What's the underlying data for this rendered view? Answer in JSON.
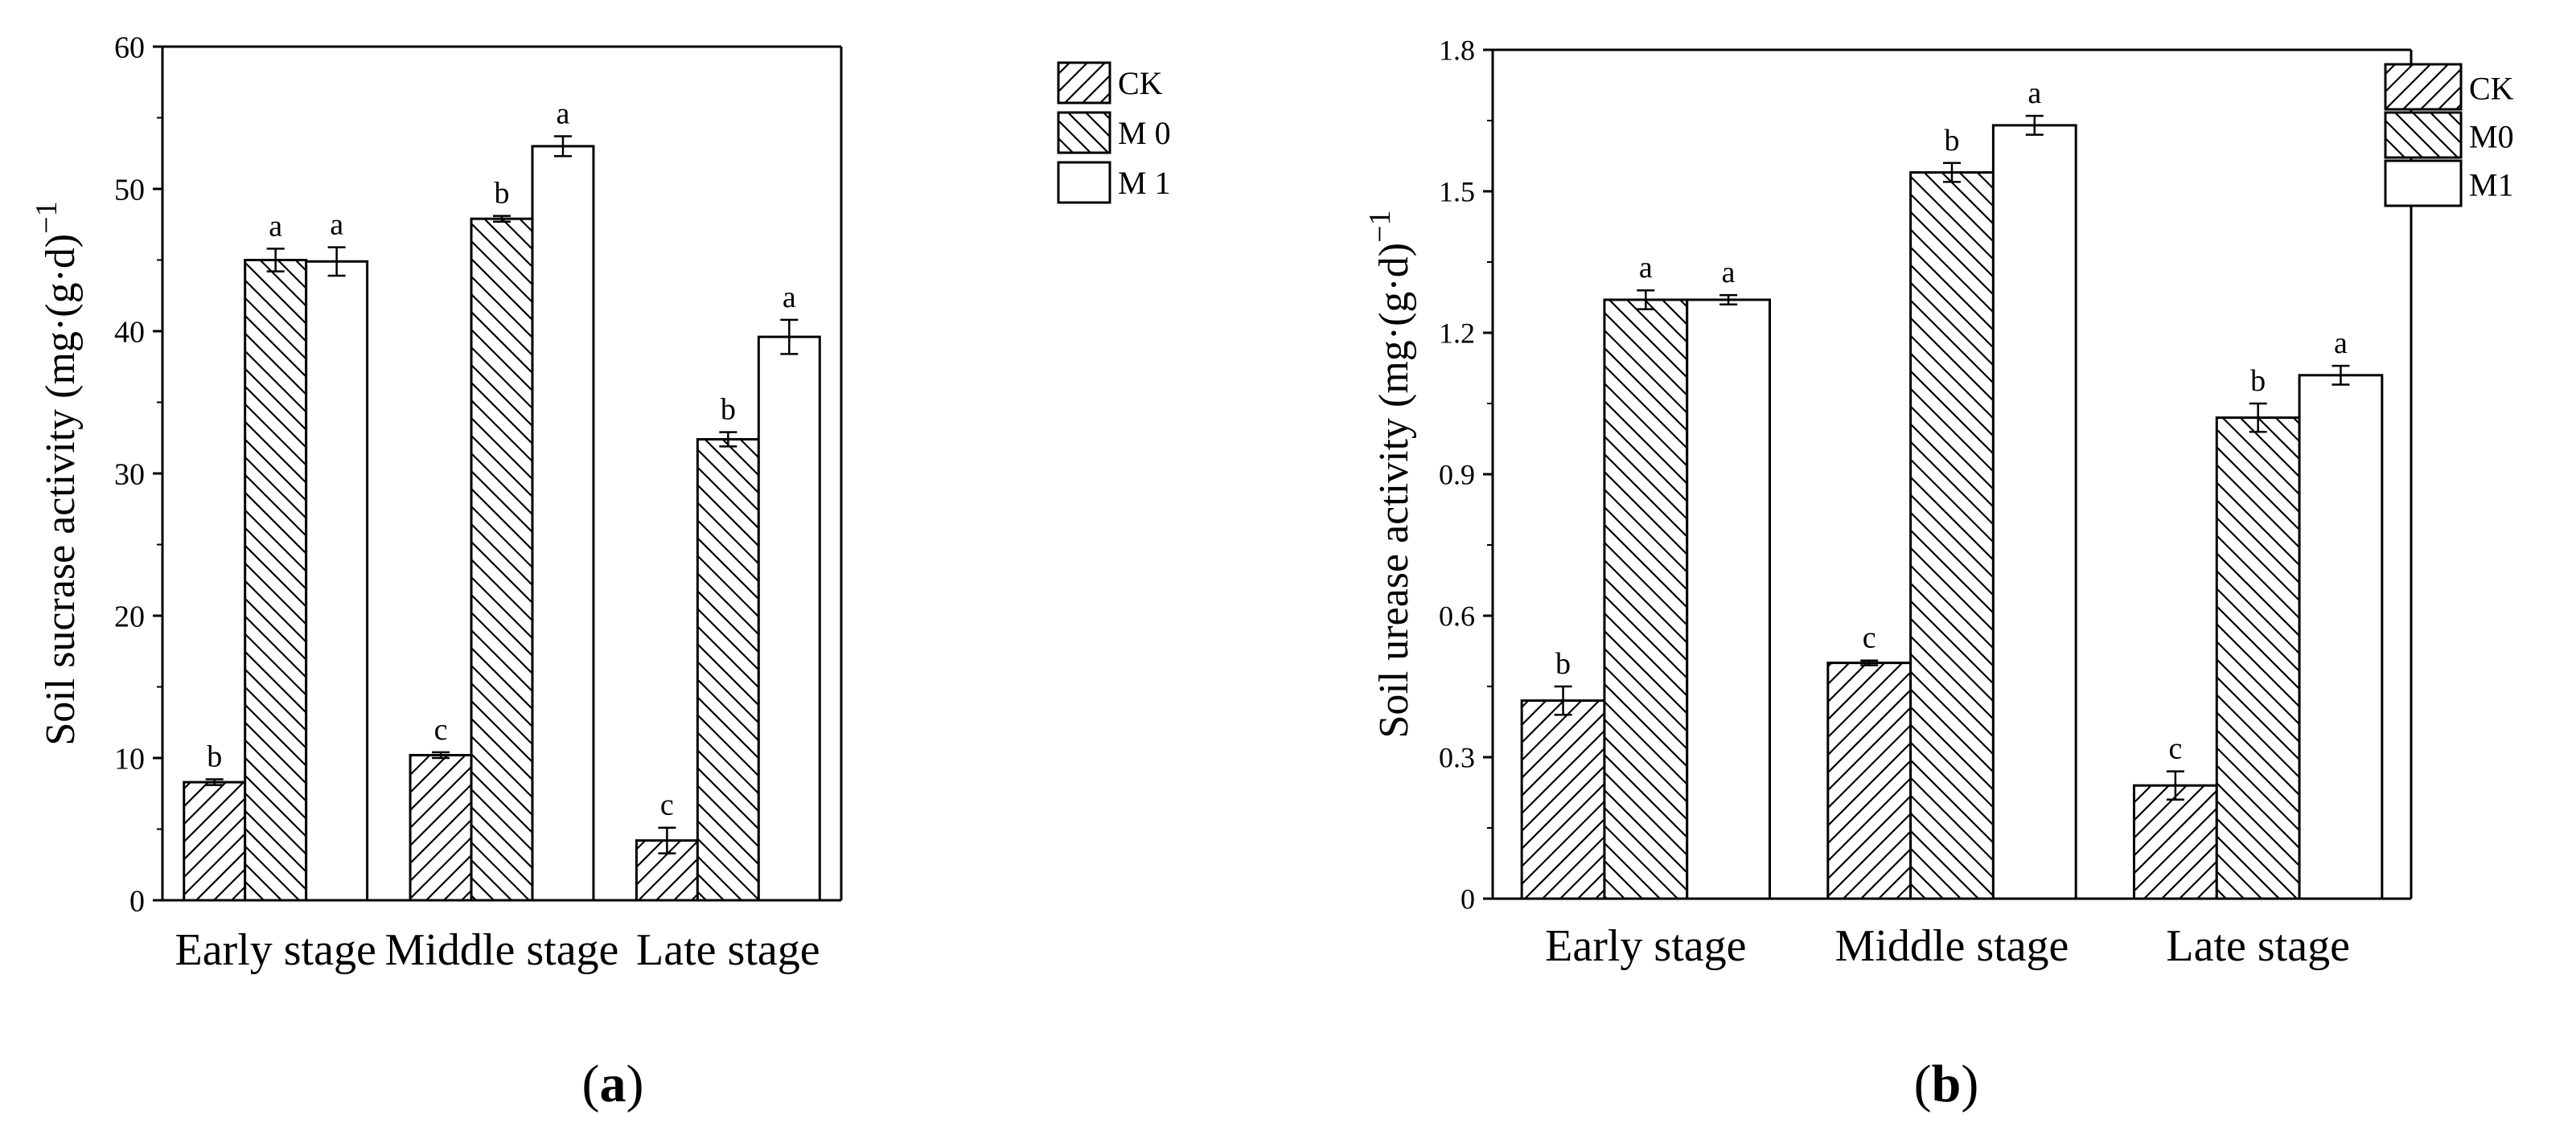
{
  "chart_data": [
    {
      "type": "bar",
      "panel_label": "a",
      "ylabel": "Soil sucrase activity (mg·(g·d)",
      "ylabel_sup": "−1",
      "categories": [
        "Early stage",
        "Middle stage",
        "Late stage"
      ],
      "ylim": [
        0,
        60
      ],
      "yticks": [
        "0",
        "10",
        "20",
        "30",
        "40",
        "50",
        "60"
      ],
      "ytick_values": [
        0,
        10,
        20,
        30,
        40,
        50,
        60
      ],
      "legend_position": "top-right",
      "series": [
        {
          "name": "CK",
          "pattern": "hatch-up",
          "values": [
            8.3,
            10.2,
            4.2
          ],
          "errors": [
            0.2,
            0.2,
            0.9
          ],
          "letters": [
            "b",
            "c",
            "c"
          ]
        },
        {
          "name": "M 0",
          "pattern": "hatch-down",
          "values": [
            45.0,
            47.9,
            32.4
          ],
          "errors": [
            0.8,
            0.2,
            0.5
          ],
          "letters": [
            "a",
            "b",
            "b"
          ]
        },
        {
          "name": "M 1",
          "pattern": "blank",
          "values": [
            44.9,
            53.0,
            39.6
          ],
          "errors": [
            1.0,
            0.7,
            1.2
          ],
          "letters": [
            "a",
            "a",
            "a"
          ]
        }
      ]
    },
    {
      "type": "bar",
      "panel_label": "b",
      "ylabel": "Soil urease activity (mg·(g·d)",
      "ylabel_sup": "−1",
      "categories": [
        "Early stage",
        "Middle stage",
        "Late stage"
      ],
      "ylim": [
        0,
        1.8
      ],
      "yticks": [
        "0",
        "0.3",
        "0.6",
        "0.9",
        "1.2",
        "1.5",
        "1.8"
      ],
      "ytick_values": [
        0,
        0.3,
        0.6,
        0.9,
        1.2,
        1.5,
        1.8
      ],
      "legend_position": "top-right",
      "series": [
        {
          "name": "CK",
          "pattern": "hatch-up",
          "values": [
            0.42,
            0.5,
            0.24
          ],
          "errors": [
            0.03,
            0.005,
            0.03
          ],
          "letters": [
            "b",
            "c",
            "c"
          ]
        },
        {
          "name": "M0",
          "pattern": "hatch-down",
          "values": [
            1.27,
            1.54,
            1.02
          ],
          "errors": [
            0.02,
            0.02,
            0.03
          ],
          "letters": [
            "a",
            "b",
            "b"
          ]
        },
        {
          "name": "M1",
          "pattern": "blank",
          "values": [
            1.27,
            1.64,
            1.11
          ],
          "errors": [
            0.01,
            0.02,
            0.02
          ],
          "letters": [
            "a",
            "a",
            "a"
          ]
        }
      ]
    }
  ]
}
